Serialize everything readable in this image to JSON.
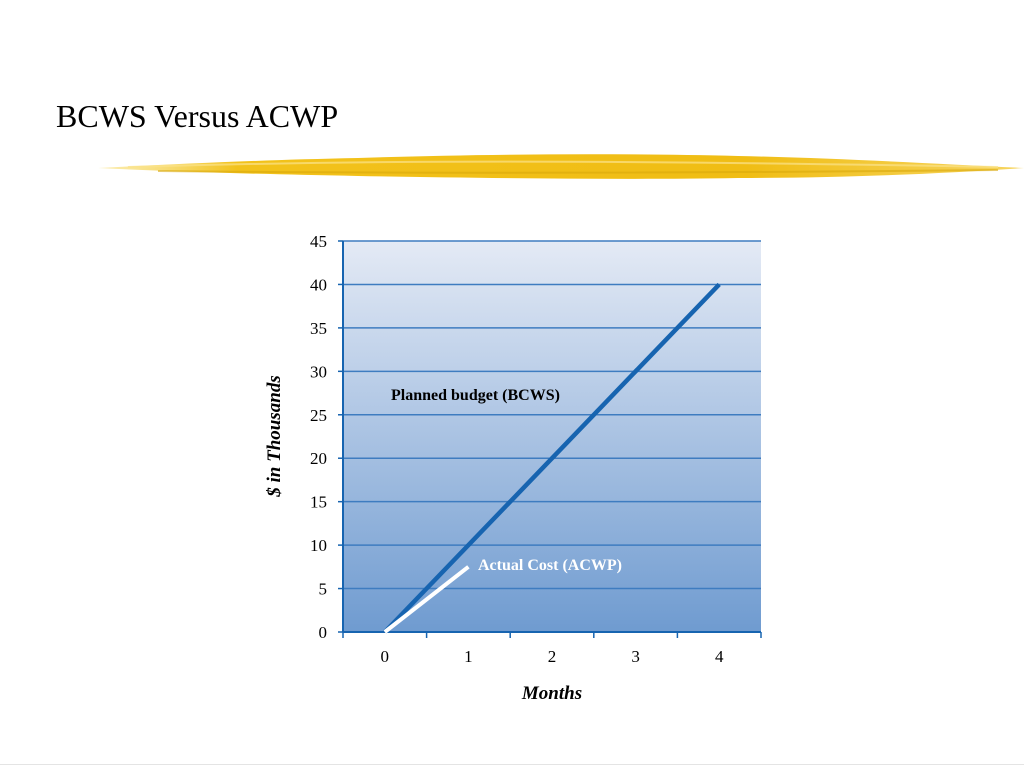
{
  "slide": {
    "title": "BCWS Versus ACWP"
  },
  "colors": {
    "accent_brush": "#f2c21b",
    "bcws_line": "#1764b0",
    "acwp_line": "#ffffff",
    "gridline": "#3e7cc0",
    "plot_top": "#e4eaf5",
    "plot_bottom": "#6f9bd0"
  },
  "chart_data": {
    "type": "line",
    "xlabel": "Months",
    "ylabel": "$ in Thousands",
    "xlim": [
      -0.5,
      4.5
    ],
    "ylim": [
      0,
      45
    ],
    "x_ticks": [
      0,
      1,
      2,
      3,
      4
    ],
    "y_ticks": [
      0,
      5,
      10,
      15,
      20,
      25,
      30,
      35,
      40,
      45
    ],
    "grid": true,
    "series": [
      {
        "name": "Planned budget (BCWS)",
        "x": [
          0,
          4
        ],
        "y": [
          0,
          40
        ]
      },
      {
        "name": "Actual Cost (ACWP)",
        "x": [
          0,
          1
        ],
        "y": [
          0,
          7.5
        ]
      }
    ]
  }
}
